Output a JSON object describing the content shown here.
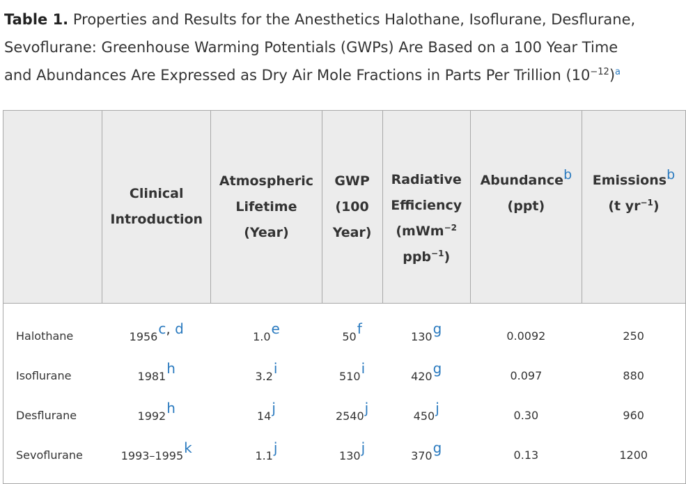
{
  "caption": {
    "label": "Table 1.",
    "line1": " Properties and Results for the Anesthetics Halothane, Isoflurane, Desflurane,",
    "line2": "Sevoflurane: Greenhouse Warming Potentials (GWPs) Are Based on a 100 Year Time",
    "line3": "and Abundances Are Expressed as Dry Air Mole Fractions in Parts Per Trillion (10",
    "exp": "−12",
    "close": ")",
    "note": "a"
  },
  "columns": {
    "clinical_1": "Clinical",
    "clinical_2": "Introduction",
    "lifetime_1": "Atmospheric",
    "lifetime_2": "Lifetime",
    "lifetime_3": "(Year)",
    "gwp_1": "GWP",
    "gwp_2": "(100",
    "gwp_3": "Year)",
    "rad_1": "Radiative",
    "rad_2": "Efficiency",
    "rad_3a": "(mWm",
    "rad_3exp": "−2",
    "rad_4a": "ppb",
    "rad_4exp": "−1",
    "rad_4b": ")",
    "abund_1": "Abundance",
    "abund_fn": "b",
    "abund_2": "(ppt)",
    "emis_1": "Emissions",
    "emis_fn": "b",
    "emis_2a": "(t yr",
    "emis_2exp": "−1",
    "emis_2b": ")"
  },
  "rows": [
    {
      "name": "Halothane",
      "intro": "1956",
      "intro_fn": "c",
      "intro_comma": ",",
      "intro_fn2": " d",
      "life": "1.0",
      "life_fn": "e",
      "gwp": "50",
      "gwp_fn": "f",
      "rad": "130",
      "rad_fn": "g",
      "abund": "0.0092",
      "emis": "250"
    },
    {
      "name": "Isoflurane",
      "intro": "1981",
      "intro_fn": "h",
      "life": "3.2",
      "life_fn": "i",
      "gwp": "510",
      "gwp_fn": "i",
      "rad": "420",
      "rad_fn": "g",
      "abund": "0.097",
      "emis": "880"
    },
    {
      "name": "Desflurane",
      "intro": "1992",
      "intro_fn": "h",
      "life": "14",
      "life_fn": "j",
      "gwp": "2540",
      "gwp_fn": "j",
      "rad": "450",
      "rad_fn": "j",
      "abund": "0.30",
      "emis": "960"
    },
    {
      "name": "Sevoflurane",
      "intro": "1993–1995",
      "intro_fn": "k",
      "life": "1.1",
      "life_fn": "j",
      "gwp": "130",
      "gwp_fn": "j",
      "rad": "370",
      "rad_fn": "g",
      "abund": "0.13",
      "emis": "1200"
    }
  ],
  "colors": {
    "footnote_link": "#2a7abf",
    "header_bg": "#ececec",
    "border": "#a8a8a8"
  }
}
